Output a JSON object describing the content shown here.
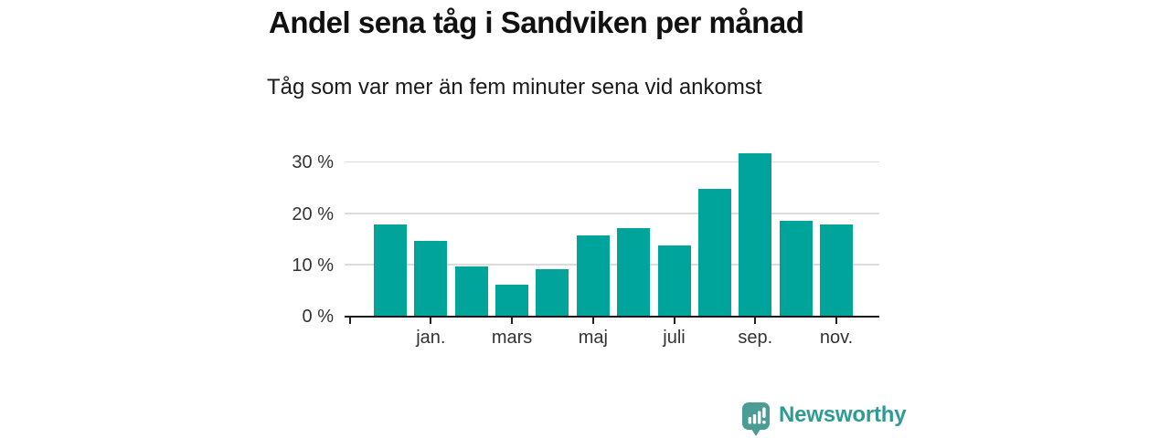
{
  "chart_data": {
    "type": "bar",
    "title": "Andel sena tåg i Sandviken per månad",
    "subtitle": "Tåg som var mer än fem minuter sena vid ankomst",
    "values": [
      18.0,
      14.8,
      9.8,
      6.2,
      9.3,
      15.8,
      17.3,
      13.9,
      25.0,
      31.9,
      18.7,
      18.0
    ],
    "x_ticks": [
      {
        "bar_index": 1,
        "label": "jan."
      },
      {
        "bar_index": 3,
        "label": "mars"
      },
      {
        "bar_index": 5,
        "label": "maj"
      },
      {
        "bar_index": 7,
        "label": "juli"
      },
      {
        "bar_index": 9,
        "label": "sep."
      },
      {
        "bar_index": 11,
        "label": "nov."
      }
    ],
    "y_ticks": [
      {
        "value": 0,
        "label": "0 %"
      },
      {
        "value": 10,
        "label": "10 %"
      },
      {
        "value": 20,
        "label": "20 %"
      },
      {
        "value": 30,
        "label": "30 %"
      }
    ],
    "ylim": [
      0,
      35
    ],
    "grid": true,
    "legend": "none",
    "unit": "%"
  },
  "colors": {
    "bar": "#00a49a",
    "grid": "#dcdcdc",
    "axis": "#1a1a1a",
    "tick": "#222222",
    "axis_label": "#333333",
    "logo_icon": "#4a9c94",
    "logo_text": "#2e9b94"
  },
  "footer": {
    "brand": "Newsworthy"
  }
}
